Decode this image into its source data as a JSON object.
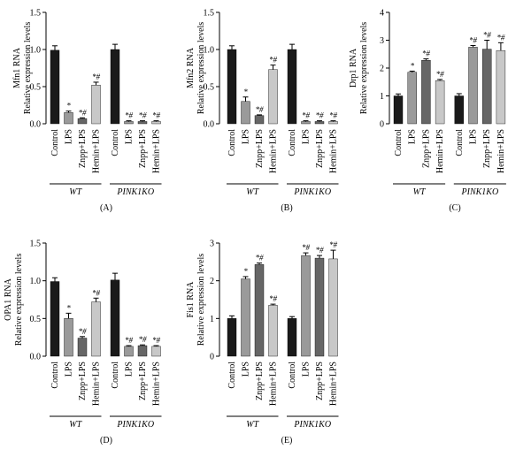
{
  "chart_data": [
    {
      "type": "bar",
      "panel": "(A)",
      "ylabel": [
        "Mfn1 RNA",
        "Relative expression levels"
      ],
      "ylim": [
        0,
        1.5
      ],
      "yticks": [
        "0.0",
        "0.5",
        "1.0",
        "1.5"
      ],
      "categories": [
        "Control",
        "LPS",
        "Znpp+LPS",
        "Hemin+LPS",
        "Control",
        "LPS",
        "Znpp+LPS",
        "Hemin+LPS"
      ],
      "groups": [
        "WT",
        "PINK1KO"
      ],
      "values": [
        0.99,
        0.15,
        0.07,
        0.52,
        1.0,
        0.03,
        0.03,
        0.03
      ],
      "errors": [
        0.06,
        0.02,
        0.01,
        0.04,
        0.07,
        0.01,
        0.01,
        0.01
      ],
      "colors": [
        "#1a1a1a",
        "#9a9a9a",
        "#666666",
        "#c8c8c8",
        "#1a1a1a",
        "#9a9a9a",
        "#666666",
        "#c8c8c8"
      ],
      "annotations": [
        "",
        "*",
        "*#",
        "*#",
        "",
        "*#",
        "*#",
        "*#"
      ]
    },
    {
      "type": "bar",
      "panel": "(B)",
      "ylabel": [
        "Mfn2 RNA",
        "Relative expression levels"
      ],
      "ylim": [
        0,
        1.5
      ],
      "yticks": [
        "0.0",
        "0.5",
        "1.0",
        "1.5"
      ],
      "categories": [
        "Control",
        "LPS",
        "Znpp+LPS",
        "Hemin+LPS",
        "Control",
        "LPS",
        "Znpp+LPS",
        "Hemin+LPS"
      ],
      "groups": [
        "WT",
        "PINK1KO"
      ],
      "values": [
        1.0,
        0.3,
        0.11,
        0.73,
        1.0,
        0.03,
        0.03,
        0.03
      ],
      "errors": [
        0.05,
        0.06,
        0.01,
        0.06,
        0.07,
        0.01,
        0.01,
        0.01
      ],
      "colors": [
        "#1a1a1a",
        "#9a9a9a",
        "#666666",
        "#c8c8c8",
        "#1a1a1a",
        "#9a9a9a",
        "#666666",
        "#c8c8c8"
      ],
      "annotations": [
        "",
        "*",
        "*#",
        "*#",
        "",
        "*#",
        "*#",
        "*#"
      ]
    },
    {
      "type": "bar",
      "panel": "(C)",
      "ylabel": [
        "Drp1 RNA",
        "Relative expression levels"
      ],
      "ylim": [
        0,
        4
      ],
      "yticks": [
        "0",
        "1",
        "2",
        "3",
        "4"
      ],
      "categories": [
        "Control",
        "LPS",
        "Znpp+LPS",
        "Hemin+LPS",
        "Control",
        "LPS",
        "Znpp+LPS",
        "Hemin+LPS"
      ],
      "groups": [
        "WT",
        "PINK1KO"
      ],
      "values": [
        1.0,
        1.85,
        2.28,
        1.55,
        1.0,
        2.75,
        2.68,
        2.63
      ],
      "errors": [
        0.07,
        0.04,
        0.05,
        0.04,
        0.08,
        0.06,
        0.32,
        0.28
      ],
      "colors": [
        "#1a1a1a",
        "#9a9a9a",
        "#666666",
        "#c8c8c8",
        "#1a1a1a",
        "#9a9a9a",
        "#666666",
        "#c8c8c8"
      ],
      "annotations": [
        "",
        "*",
        "*#",
        "*#",
        "",
        "*#",
        "*#",
        "*#"
      ]
    },
    {
      "type": "bar",
      "panel": "(D)",
      "ylabel": [
        "OPA1 RNA",
        "Relative expression levels"
      ],
      "ylim": [
        0,
        1.5
      ],
      "yticks": [
        "0.0",
        "0.5",
        "1.0",
        "1.5"
      ],
      "categories": [
        "Control",
        "LPS",
        "Znpp+LPS",
        "Hemin+LPS",
        "Control",
        "LPS",
        "Znpp+LPS",
        "Hemin+LPS"
      ],
      "groups": [
        "WT",
        "PINK1KO"
      ],
      "values": [
        0.99,
        0.5,
        0.24,
        0.72,
        1.01,
        0.13,
        0.14,
        0.13
      ],
      "errors": [
        0.05,
        0.07,
        0.02,
        0.05,
        0.09,
        0.01,
        0.01,
        0.01
      ],
      "colors": [
        "#1a1a1a",
        "#9a9a9a",
        "#666666",
        "#c8c8c8",
        "#1a1a1a",
        "#9a9a9a",
        "#666666",
        "#c8c8c8"
      ],
      "annotations": [
        "",
        "*",
        "*#",
        "*#",
        "",
        "*#",
        "*#",
        "*#"
      ]
    },
    {
      "type": "bar",
      "panel": "(E)",
      "ylabel": [
        "Fis1 RNA",
        "Relative expression levels"
      ],
      "ylim": [
        0,
        3
      ],
      "yticks": [
        "0",
        "1",
        "2",
        "3"
      ],
      "categories": [
        "Control",
        "LPS",
        "Znpp+LPS",
        "Hemin+LPS",
        "Control",
        "LPS",
        "Znpp+LPS",
        "Hemin+LPS"
      ],
      "groups": [
        "WT",
        "PINK1KO"
      ],
      "values": [
        1.0,
        2.05,
        2.43,
        1.35,
        1.0,
        2.67,
        2.6,
        2.58
      ],
      "errors": [
        0.07,
        0.06,
        0.04,
        0.03,
        0.05,
        0.07,
        0.07,
        0.23
      ],
      "colors": [
        "#1a1a1a",
        "#9a9a9a",
        "#666666",
        "#c8c8c8",
        "#1a1a1a",
        "#9a9a9a",
        "#666666",
        "#c8c8c8"
      ],
      "annotations": [
        "",
        "*",
        "*#",
        "*#",
        "",
        "*#",
        "*#",
        "*#"
      ]
    }
  ]
}
